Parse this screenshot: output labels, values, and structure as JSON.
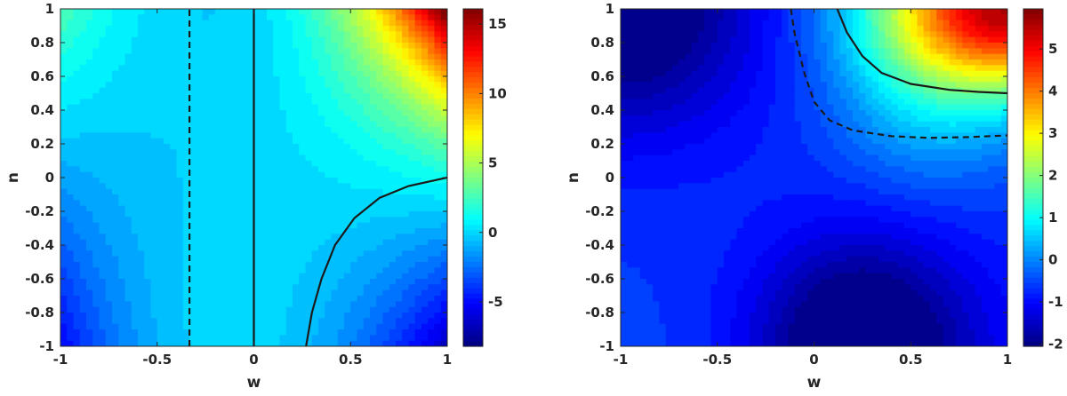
{
  "chart_data": [
    {
      "type": "heatmap",
      "title": "",
      "xlabel": "w",
      "ylabel": "n",
      "xlim": [
        -1,
        1
      ],
      "ylim": [
        -1,
        1
      ],
      "grid": false,
      "colormap": "jet",
      "colorbar_range": [
        -8.2,
        16.1
      ],
      "x_ticks": [
        "-1",
        "-0.5",
        "0",
        "0.5",
        "1"
      ],
      "y_ticks": [
        "1",
        "0.8",
        "0.6",
        "0.4",
        "0.2",
        "0",
        "-0.2",
        "-0.4",
        "-0.6",
        "-0.8",
        "-1"
      ],
      "colorbar_ticks": [
        {
          "value": 15,
          "label": "15"
        },
        {
          "value": 10,
          "label": "10"
        },
        {
          "value": 5,
          "label": "5"
        },
        {
          "value": 0,
          "label": "0"
        },
        {
          "value": -5,
          "label": "-5"
        }
      ],
      "contours": [
        {
          "style": "dashed",
          "points": [
            [
              -0.333,
              -1
            ],
            [
              -0.333,
              1
            ]
          ]
        },
        {
          "style": "solid",
          "points": [
            [
              0,
              -1
            ],
            [
              0,
              1
            ]
          ]
        },
        {
          "style": "solid",
          "points": [
            [
              0.27,
              -1
            ],
            [
              0.3,
              -0.8
            ],
            [
              0.35,
              -0.6
            ],
            [
              0.42,
              -0.4
            ],
            [
              0.52,
              -0.24
            ],
            [
              0.65,
              -0.12
            ],
            [
              0.8,
              -0.05
            ],
            [
              1.0,
              0.0
            ]
          ]
        }
      ]
    },
    {
      "type": "heatmap",
      "title": "",
      "xlabel": "w",
      "ylabel": "n",
      "xlim": [
        -1,
        1
      ],
      "ylim": [
        -1,
        1
      ],
      "grid": false,
      "colormap": "jet",
      "colorbar_range": [
        -2.05,
        5.95
      ],
      "x_ticks": [
        "-1",
        "-0.5",
        "0",
        "0.5",
        "1"
      ],
      "y_ticks": [
        "1",
        "0.8",
        "0.6",
        "0.4",
        "0.2",
        "0",
        "-0.2",
        "-0.4",
        "-0.6",
        "-0.8",
        "-1"
      ],
      "colorbar_ticks": [
        {
          "value": 5,
          "label": "5"
        },
        {
          "value": 4,
          "label": "4"
        },
        {
          "value": 3,
          "label": "3"
        },
        {
          "value": 2,
          "label": "2"
        },
        {
          "value": 1,
          "label": "1"
        },
        {
          "value": 0,
          "label": "0"
        },
        {
          "value": -1,
          "label": "-1"
        },
        {
          "value": -2,
          "label": "-2"
        }
      ],
      "contours": [
        {
          "style": "dashed",
          "points": [
            [
              -0.12,
              1.0
            ],
            [
              -0.1,
              0.85
            ],
            [
              -0.05,
              0.62
            ],
            [
              0.0,
              0.45
            ],
            [
              0.08,
              0.34
            ],
            [
              0.2,
              0.28
            ],
            [
              0.4,
              0.245
            ],
            [
              0.6,
              0.235
            ],
            [
              0.8,
              0.24
            ],
            [
              1.0,
              0.25
            ]
          ]
        },
        {
          "style": "solid",
          "points": [
            [
              0.12,
              1.0
            ],
            [
              0.17,
              0.86
            ],
            [
              0.25,
              0.72
            ],
            [
              0.35,
              0.62
            ],
            [
              0.5,
              0.555
            ],
            [
              0.7,
              0.52
            ],
            [
              0.85,
              0.508
            ],
            [
              1.0,
              0.5
            ]
          ]
        }
      ]
    }
  ]
}
